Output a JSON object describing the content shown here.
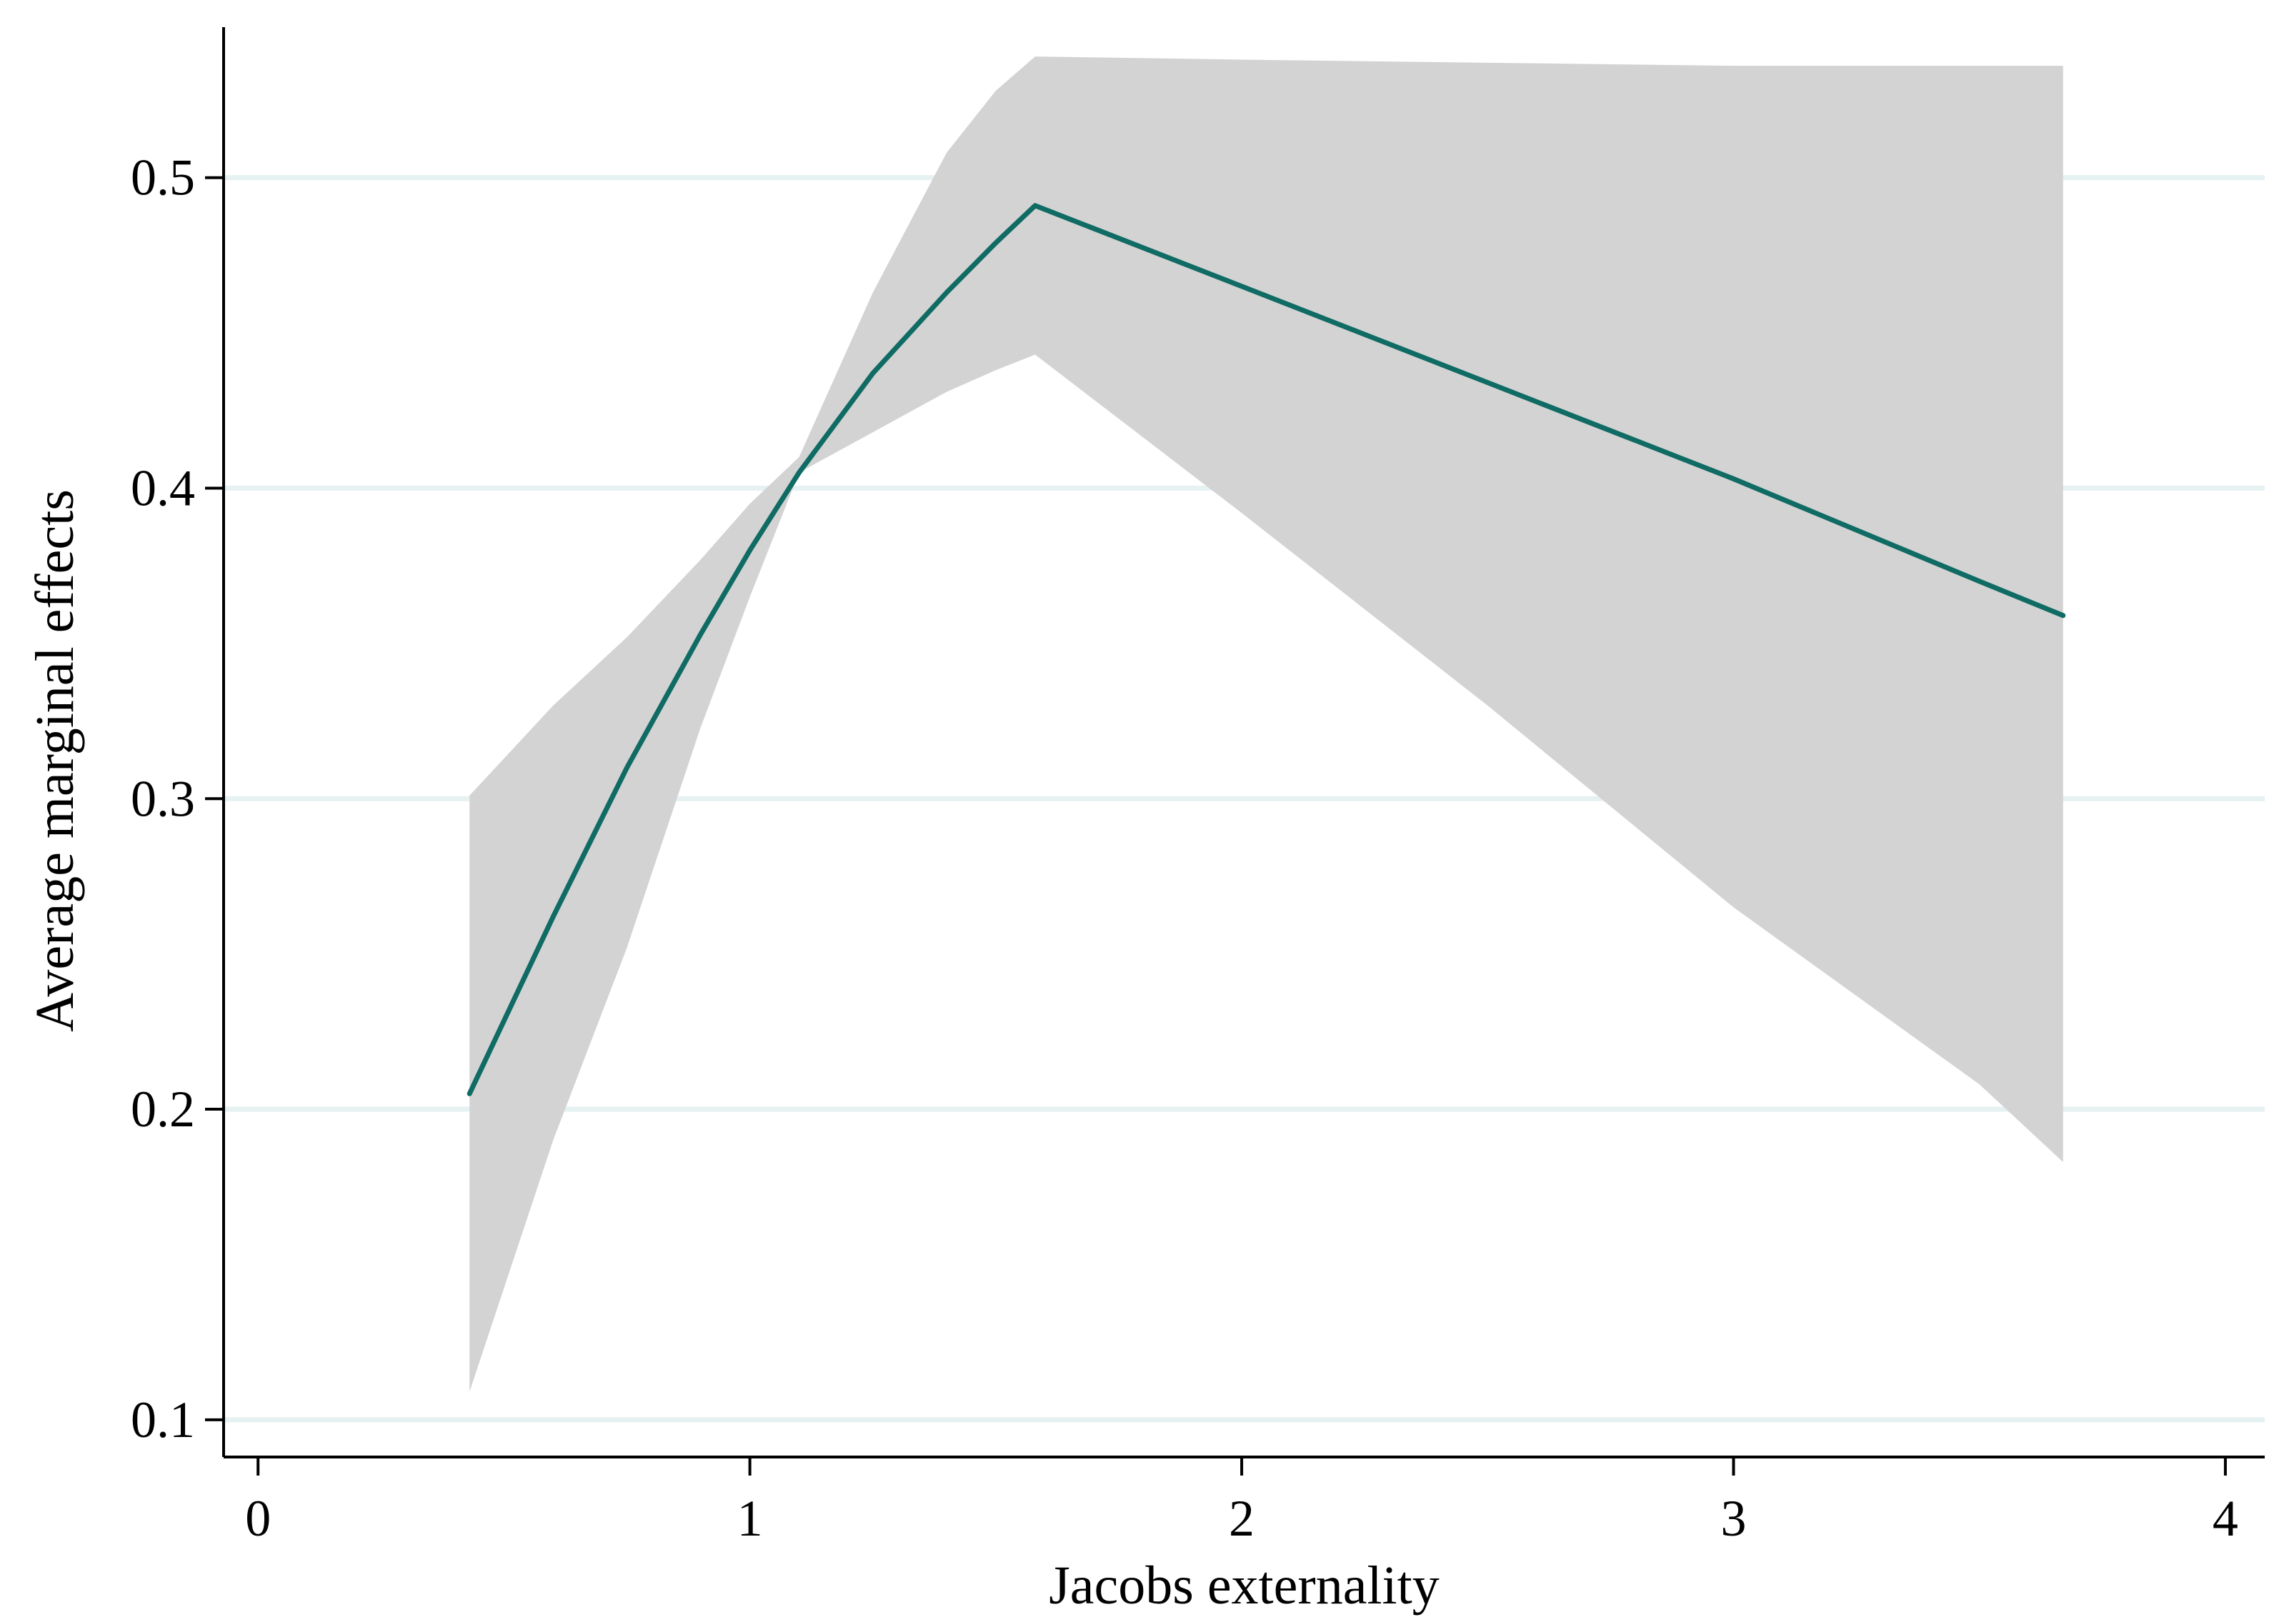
{
  "chart_data": {
    "type": "line",
    "title": "",
    "xlabel": "Jacobs externality",
    "ylabel": "Average marginal effects",
    "xlim": [
      -0.07,
      4.08
    ],
    "ylim": [
      0.088,
      0.548
    ],
    "xticks": [
      0,
      1,
      2,
      3,
      4
    ],
    "xtick_labels": [
      "0",
      "1",
      "2",
      "3",
      "4"
    ],
    "yticks": [
      0.1,
      0.2,
      0.3,
      0.4,
      0.5
    ],
    "ytick_labels": [
      "0.1",
      "0.2",
      "0.3",
      "0.4",
      "0.5"
    ],
    "grid": "horizontal",
    "legend": "none",
    "colors": {
      "line": "#0f6b63",
      "band": "#d3d3d3",
      "grid": "#e6f1f2"
    },
    "series": [
      {
        "kind": "line",
        "x": [
          0.43,
          0.6,
          0.75,
          0.9,
          1.0,
          1.1,
          1.25,
          1.4,
          1.5,
          1.58,
          2.0,
          2.5,
          3.0,
          3.5,
          3.67
        ],
        "y": [
          0.205,
          0.262,
          0.31,
          0.353,
          0.38,
          0.405,
          0.437,
          0.463,
          0.479,
          0.491,
          0.465,
          0.434,
          0.403,
          0.37,
          0.359
        ]
      },
      {
        "kind": "band",
        "x": [
          0.43,
          0.6,
          0.75,
          0.9,
          1.0,
          1.1,
          1.25,
          1.4,
          1.5,
          1.58,
          2.0,
          2.5,
          3.0,
          3.5,
          3.67
        ],
        "lower": [
          0.109,
          0.19,
          0.252,
          0.323,
          0.365,
          0.405,
          0.418,
          0.431,
          0.438,
          0.443,
          0.392,
          0.33,
          0.265,
          0.208,
          0.183
        ],
        "upper": [
          0.301,
          0.33,
          0.352,
          0.377,
          0.395,
          0.41,
          0.463,
          0.508,
          0.528,
          0.539,
          0.538,
          0.537,
          0.536,
          0.536,
          0.536
        ]
      }
    ]
  }
}
